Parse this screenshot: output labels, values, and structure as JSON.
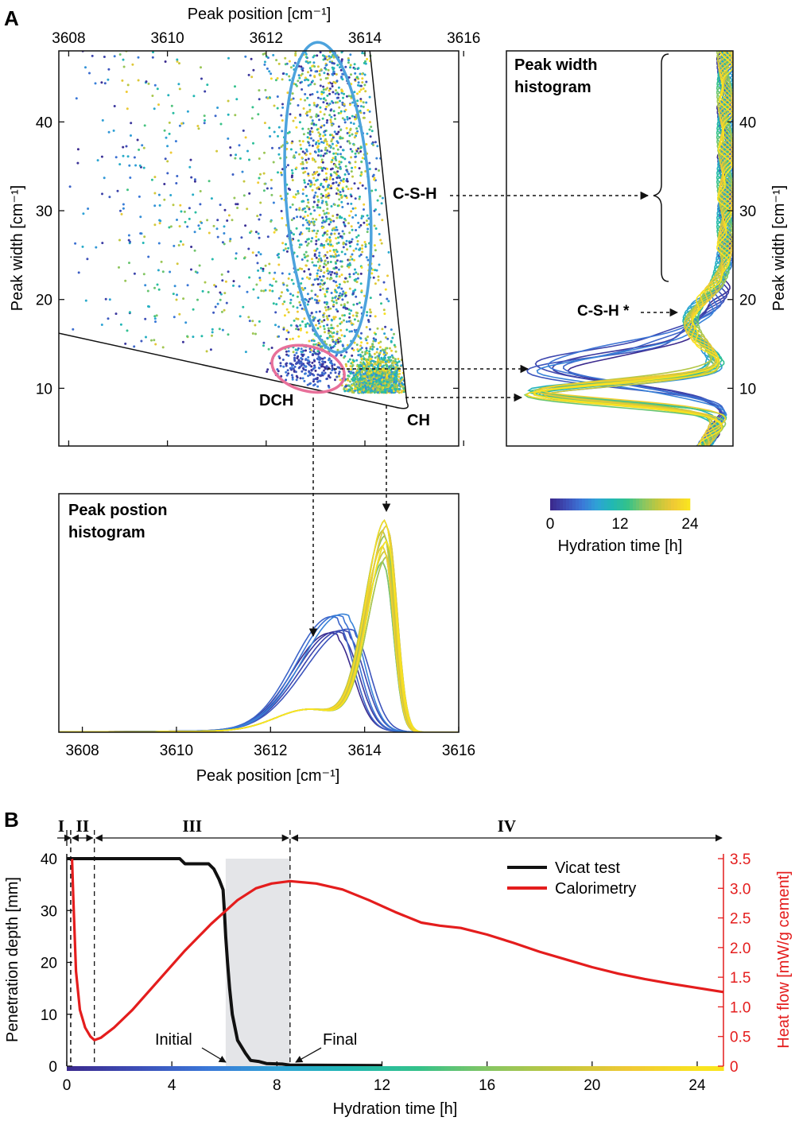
{
  "panel_labels": {
    "a": "A",
    "b": "B"
  },
  "colors": {
    "csh_ellipse": "#4da3dd",
    "dch_ellipse": "#e8709a",
    "calorimetry": "#e41d1d",
    "vicat": "#111111",
    "shade": "#e4e5e8",
    "viridis": [
      "#3b2a8e",
      "#3d4fb8",
      "#3b78d8",
      "#2ea3d6",
      "#21b8b2",
      "#34c28a",
      "#86c663",
      "#c2c73e",
      "#f0c935",
      "#f9e41f"
    ]
  },
  "chart_data": [
    {
      "type": "scatter",
      "title": "",
      "xlabel_top": "Peak position [cm⁻¹]",
      "ylabel": "Peak width [cm⁻¹]",
      "xlim": [
        3607.8,
        3615.9
      ],
      "ylim": [
        3.5,
        48
      ],
      "xticks": [
        3608,
        3610,
        3612,
        3614,
        3616
      ],
      "yticks": [
        10,
        20,
        30,
        40
      ],
      "annotations": [
        "C-S-H",
        "DCH",
        "CH"
      ],
      "colorbar": {
        "label": "Hydration time [h]",
        "ticks": [
          "0",
          "12",
          "24"
        ],
        "range": [
          0,
          24
        ]
      },
      "regions": [
        {
          "name": "C-S-H",
          "center": [
            3613.25,
            31.5
          ],
          "half_width": 0.85,
          "half_height": 17.5
        },
        {
          "name": "DCH",
          "center": [
            3612.85,
            12.2
          ],
          "half_width": 0.75,
          "half_height": 2.5
        }
      ]
    },
    {
      "type": "line",
      "title": "Peak width histogram",
      "ylabel": "Peak width [cm⁻¹]",
      "ylim": [
        3.5,
        48
      ],
      "yticks": [
        10,
        20,
        30,
        40
      ],
      "annotations": [
        "C-S-H *"
      ],
      "series_groups": [
        {
          "hours": [
            0,
            1,
            2,
            3,
            4,
            5,
            6
          ],
          "main_peak": 12.2,
          "amplitude": 0.95
        },
        {
          "hours": [
            7,
            8,
            9,
            10,
            11,
            12,
            13,
            14,
            15,
            16,
            17,
            18,
            19,
            20,
            21,
            22,
            23,
            24
          ],
          "main_peak": 9.5,
          "amplitude": 1.0
        }
      ]
    },
    {
      "type": "line",
      "title": "Peak postion histogram",
      "xlabel": "Peak position [cm⁻¹]",
      "xlim": [
        3607.5,
        3616
      ],
      "xticks": [
        3608,
        3610,
        3612,
        3614,
        3616
      ],
      "series_groups": [
        {
          "hours": [
            0,
            1,
            2,
            3,
            4,
            5,
            6
          ],
          "main_peak": 3613.6,
          "amplitude": 0.45
        },
        {
          "hours": [
            7,
            8,
            9,
            10,
            11,
            12,
            13,
            14,
            15,
            16,
            17,
            18,
            19,
            20,
            21,
            22,
            23,
            24
          ],
          "main_peak": 3614.45,
          "amplitude": 0.92
        }
      ]
    },
    {
      "type": "line",
      "xlabel": "Hydration time [h]",
      "ylabel": "Penetration depth [mm]",
      "ylabel_right": "Heat flow [mW/g cement]",
      "xlim": [
        0,
        25
      ],
      "ylim": [
        0,
        40
      ],
      "ylim_right": [
        0,
        3.5
      ],
      "xticks": [
        0,
        4,
        8,
        12,
        16,
        20,
        24
      ],
      "yticks": [
        0,
        10,
        20,
        30,
        40
      ],
      "yticks_right": [
        "0",
        "0.5",
        "1.0",
        "1.5",
        "2.0",
        "2.5",
        "3.0",
        "3.5"
      ],
      "phases": [
        {
          "label": "I",
          "start": 0,
          "end": 0.15
        },
        {
          "label": "II",
          "start": 0.15,
          "end": 1.05
        },
        {
          "label": "III",
          "start": 1.05,
          "end": 8.5
        },
        {
          "label": "IV",
          "start": 8.5,
          "end": 25
        }
      ],
      "setting_window": {
        "initial": 6.05,
        "final": 8.5,
        "initial_label": "Initial",
        "final_label": "Final"
      },
      "legend": [
        "Vicat test",
        "Calorimetry"
      ],
      "series": [
        {
          "name": "Vicat test",
          "axis": "left",
          "x": [
            0,
            4.3,
            4.5,
            5.4,
            5.6,
            5.8,
            5.95,
            6.0,
            6.05,
            6.12,
            6.2,
            6.3,
            6.5,
            6.8,
            7.0,
            7.3,
            7.6,
            8.2,
            8.5,
            12
          ],
          "y": [
            40,
            40,
            39,
            39,
            38,
            36,
            34,
            30,
            25,
            20,
            15,
            10,
            5,
            2.5,
            1.1,
            0.9,
            0.5,
            0.4,
            0.2,
            0.1
          ]
        },
        {
          "name": "Calorimetry",
          "axis": "right",
          "x": [
            0.2,
            0.25,
            0.35,
            0.5,
            0.7,
            0.9,
            1.05,
            1.3,
            1.8,
            2.5,
            3.5,
            4.5,
            5.5,
            6.5,
            7.2,
            7.8,
            8.5,
            9.5,
            10.5,
            11.5,
            12.5,
            13.5,
            14.2,
            15,
            16,
            17,
            18,
            19,
            20,
            21,
            22,
            23,
            24,
            25
          ],
          "y": [
            3.5,
            2.8,
            1.6,
            0.95,
            0.65,
            0.5,
            0.44,
            0.48,
            0.65,
            0.95,
            1.45,
            1.95,
            2.4,
            2.8,
            3.0,
            3.08,
            3.12,
            3.08,
            2.98,
            2.8,
            2.6,
            2.42,
            2.37,
            2.33,
            2.22,
            2.08,
            1.93,
            1.8,
            1.67,
            1.56,
            1.47,
            1.39,
            1.32,
            1.25
          ]
        }
      ]
    }
  ]
}
